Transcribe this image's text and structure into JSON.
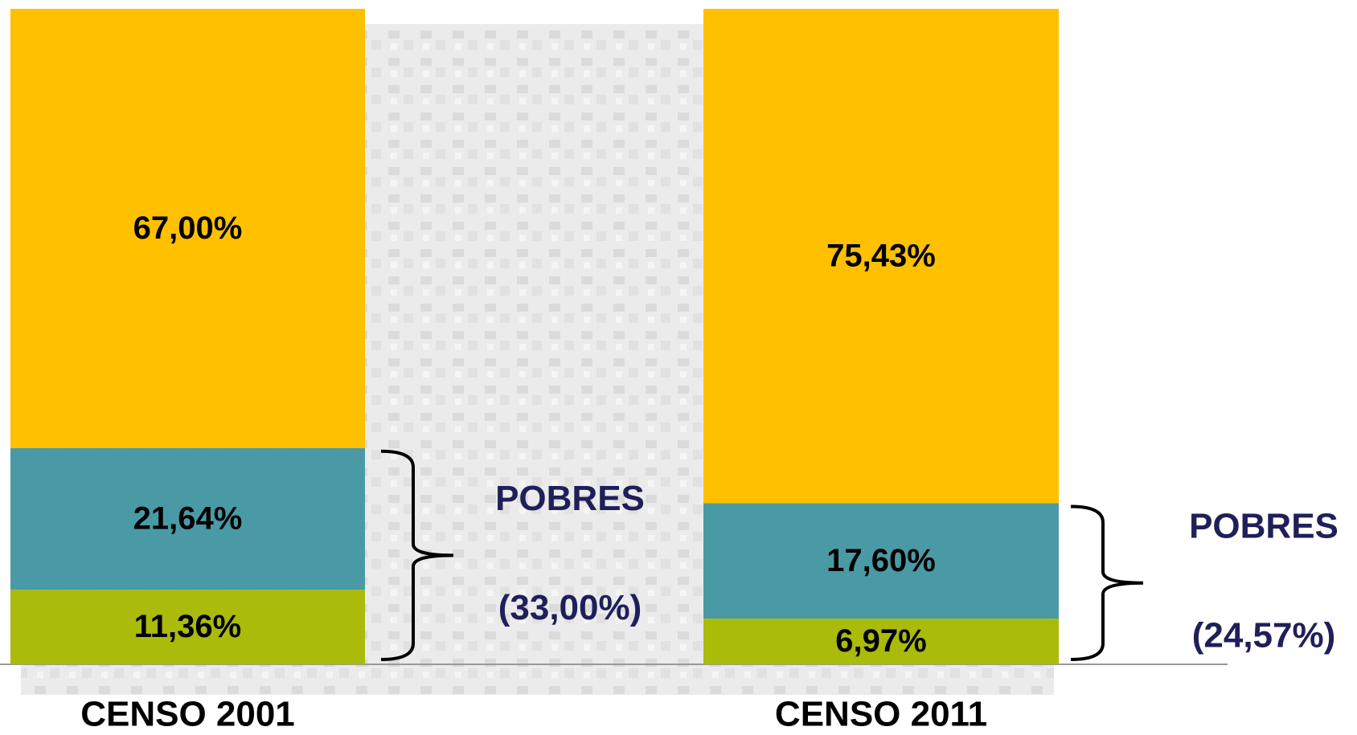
{
  "chart_data": {
    "type": "stacked_bar",
    "categories": [
      "CENSO 2001",
      "CENSO 2011"
    ],
    "series": [
      {
        "color": "#aabb0a",
        "values": [
          11.36,
          6.97
        ],
        "value_labels": [
          "11,36%",
          "6,97%"
        ]
      },
      {
        "color": "#4a9aa5",
        "values": [
          21.64,
          17.6
        ],
        "value_labels": [
          "21,64%",
          "17,60%"
        ]
      },
      {
        "color": "#ffc000",
        "values": [
          67.0,
          75.43
        ],
        "value_labels": [
          "67,00%",
          "75,43%"
        ]
      }
    ],
    "annotations": [
      {
        "text": "POBRES",
        "value": 33.0,
        "label": "(33,00%)"
      },
      {
        "text": "POBRES",
        "value": 24.57,
        "label": "(24,57%)"
      }
    ],
    "ylim": [
      0,
      100
    ]
  }
}
